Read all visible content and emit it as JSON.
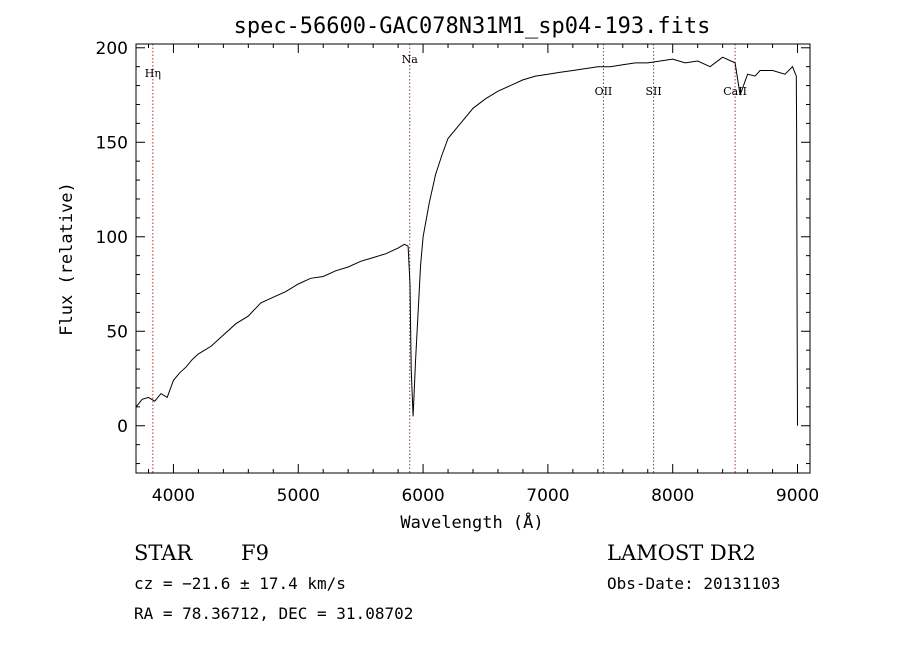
{
  "chart_data": {
    "type": "line",
    "title": "spec-56600-GAC078N31M1_sp04-193.fits",
    "xlabel": "Wavelength (Å)",
    "ylabel": "Flux (relative)",
    "xlim": [
      3700,
      9100
    ],
    "ylim": [
      -25,
      202
    ],
    "xticks": [
      4000,
      5000,
      6000,
      7000,
      8000,
      9000
    ],
    "yticks": [
      0,
      50,
      100,
      150,
      200
    ],
    "grid": false,
    "series": [
      {
        "color": "#000000",
        "x": [
          3700,
          3750,
          3800,
          3850,
          3900,
          3950,
          4000,
          4050,
          4100,
          4150,
          4200,
          4300,
          4400,
          4500,
          4600,
          4700,
          4800,
          4900,
          5000,
          5100,
          5200,
          5300,
          5400,
          5500,
          5600,
          5700,
          5800,
          5850,
          5880,
          5895,
          5905,
          5920,
          5940,
          5960,
          5980,
          6000,
          6050,
          6100,
          6150,
          6200,
          6300,
          6400,
          6500,
          6600,
          6700,
          6800,
          6900,
          7000,
          7100,
          7200,
          7300,
          7400,
          7500,
          7600,
          7700,
          7800,
          7900,
          8000,
          8100,
          8200,
          8300,
          8400,
          8500,
          8540,
          8600,
          8660,
          8700,
          8800,
          8900,
          8960,
          8990,
          8993,
          8997,
          9000
        ],
        "y": [
          10,
          14,
          15,
          13,
          17,
          15,
          24,
          28,
          31,
          35,
          38,
          42,
          48,
          54,
          58,
          65,
          68,
          71,
          75,
          78,
          79,
          82,
          84,
          87,
          89,
          91,
          94,
          96,
          95,
          75,
          30,
          5,
          35,
          60,
          85,
          100,
          118,
          133,
          143,
          152,
          160,
          168,
          173,
          177,
          180,
          183,
          185,
          186,
          187,
          188,
          189,
          190,
          190,
          191,
          192,
          192,
          193,
          194,
          192,
          193,
          190,
          195,
          192,
          175,
          186,
          185,
          188,
          188,
          186,
          190,
          185,
          160,
          60,
          0
        ]
      }
    ],
    "spectral_lines": [
      {
        "label": "Hη",
        "wavelength": 3835
      },
      {
        "label": "Na",
        "wavelength": 5893
      },
      {
        "label": "OII",
        "wavelength": 7445
      },
      {
        "label": "SII",
        "wavelength": 7847
      },
      {
        "label": "CaII",
        "wavelength": 8500
      }
    ],
    "line_color": "#b03030"
  },
  "info": {
    "object_class": "STAR",
    "subclass": "F9",
    "survey": "LAMOST DR2",
    "cz": "cz = −21.6 ± 17.4 km/s",
    "obs_date": "Obs-Date: 20131103",
    "coords": "RA =  78.36712, DEC =  31.08702"
  }
}
